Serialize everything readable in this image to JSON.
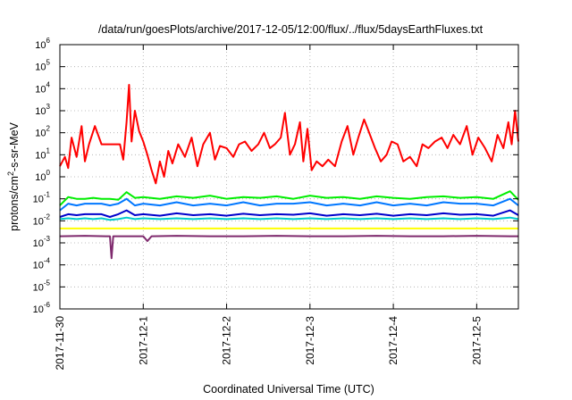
{
  "chart_data": {
    "type": "line",
    "title": "/data/run/goesPlots/archive/2017-12-05/12:00/flux/../flux/5daysEarthFluxes.txt",
    "xlabel": "Coordinated Universal Time (UTC)",
    "ylabel": {
      "base": "protons/cm",
      "sup": "2",
      "rest": "-s-sr-MeV"
    },
    "y_scale": "log",
    "ylim": [
      1e-06,
      1000000.0
    ],
    "xlim": [
      "2017-11-30 00:00",
      "2017-12-05 12:00"
    ],
    "x_ticks": [
      "2017-11-30",
      "2017-12-1",
      "2017-12-2",
      "2017-12-3",
      "2017-12-4",
      "2017-12-5"
    ],
    "y_ticks": [
      {
        "value": 1e-06,
        "base": "10",
        "exp": "-6"
      },
      {
        "value": 1e-05,
        "base": "10",
        "exp": "-5"
      },
      {
        "value": 0.0001,
        "base": "10",
        "exp": "-4"
      },
      {
        "value": 0.001,
        "base": "10",
        "exp": "-3"
      },
      {
        "value": 0.01,
        "base": "10",
        "exp": "-2"
      },
      {
        "value": 0.1,
        "base": "10",
        "exp": "-1"
      },
      {
        "value": 1,
        "base": "10",
        "exp": "0"
      },
      {
        "value": 10,
        "base": "10",
        "exp": "1"
      },
      {
        "value": 100,
        "base": "10",
        "exp": "2"
      },
      {
        "value": 1000,
        "base": "10",
        "exp": "3"
      },
      {
        "value": 10000,
        "base": "10",
        "exp": "4"
      },
      {
        "value": 100000,
        "base": "10",
        "exp": "5"
      },
      {
        "value": 1000000,
        "base": "10",
        "exp": "6"
      }
    ],
    "grid": true,
    "legend": "none",
    "series": [
      {
        "color": "#ff0000",
        "x_days": [
          0,
          0.06,
          0.1,
          0.14,
          0.2,
          0.26,
          0.3,
          0.35,
          0.42,
          0.5,
          0.56,
          0.62,
          0.68,
          0.72,
          0.76,
          0.8,
          0.83,
          0.86,
          0.9,
          0.95,
          1.0,
          1.05,
          1.1,
          1.15,
          1.2,
          1.25,
          1.3,
          1.35,
          1.42,
          1.5,
          1.58,
          1.65,
          1.72,
          1.8,
          1.86,
          1.92,
          2.0,
          2.08,
          2.15,
          2.22,
          2.3,
          2.38,
          2.45,
          2.52,
          2.58,
          2.65,
          2.7,
          2.76,
          2.82,
          2.88,
          2.92,
          2.97,
          3.02,
          3.08,
          3.15,
          3.22,
          3.3,
          3.38,
          3.45,
          3.52,
          3.58,
          3.65,
          3.72,
          3.78,
          3.85,
          3.92,
          3.98,
          4.05,
          4.12,
          4.2,
          4.28,
          4.35,
          4.42,
          4.5,
          4.58,
          4.65,
          4.72,
          4.8,
          4.88,
          4.95,
          5.02,
          5.1,
          5.18,
          5.25,
          5.32,
          5.38,
          5.42,
          5.46,
          5.5
        ],
        "values": [
          3,
          8,
          2.5,
          60,
          8,
          200,
          5,
          30,
          200,
          30,
          30,
          30,
          30,
          30,
          6,
          300,
          15000,
          40,
          1000,
          120,
          40,
          10,
          2,
          0.5,
          5,
          1,
          15,
          4,
          30,
          8,
          60,
          3,
          30,
          100,
          6,
          25,
          20,
          8,
          30,
          40,
          15,
          30,
          100,
          20,
          30,
          60,
          800,
          10,
          30,
          300,
          5,
          150,
          2,
          5,
          3,
          6,
          3,
          40,
          200,
          10,
          60,
          400,
          80,
          20,
          5,
          10,
          40,
          30,
          5,
          8,
          3,
          30,
          20,
          40,
          60,
          20,
          80,
          30,
          200,
          10,
          60,
          20,
          5,
          80,
          20,
          300,
          30,
          1000,
          40
        ]
      },
      {
        "color": "#00ee00",
        "x_days": [
          0,
          0.1,
          0.2,
          0.3,
          0.4,
          0.5,
          0.6,
          0.7,
          0.8,
          0.9,
          1.0,
          1.2,
          1.4,
          1.6,
          1.8,
          2.0,
          2.2,
          2.4,
          2.6,
          2.8,
          3.0,
          3.2,
          3.4,
          3.6,
          3.8,
          4.0,
          4.2,
          4.4,
          4.6,
          4.8,
          5.0,
          5.2,
          5.4,
          5.5
        ],
        "values": [
          0.05,
          0.12,
          0.1,
          0.1,
          0.11,
          0.1,
          0.1,
          0.09,
          0.2,
          0.11,
          0.12,
          0.1,
          0.13,
          0.11,
          0.14,
          0.1,
          0.12,
          0.11,
          0.13,
          0.1,
          0.14,
          0.11,
          0.12,
          0.1,
          0.13,
          0.11,
          0.1,
          0.12,
          0.13,
          0.11,
          0.12,
          0.1,
          0.22,
          0.09
        ]
      },
      {
        "color": "#0077ff",
        "x_days": [
          0,
          0.1,
          0.2,
          0.3,
          0.4,
          0.5,
          0.6,
          0.7,
          0.8,
          0.9,
          1.0,
          1.2,
          1.4,
          1.6,
          1.8,
          2.0,
          2.2,
          2.4,
          2.6,
          2.8,
          3.0,
          3.2,
          3.4,
          3.6,
          3.8,
          4.0,
          4.2,
          4.4,
          4.6,
          4.8,
          5.0,
          5.2,
          5.4,
          5.5
        ],
        "values": [
          0.03,
          0.06,
          0.05,
          0.06,
          0.06,
          0.06,
          0.05,
          0.06,
          0.1,
          0.05,
          0.06,
          0.05,
          0.07,
          0.05,
          0.06,
          0.05,
          0.07,
          0.05,
          0.06,
          0.06,
          0.07,
          0.05,
          0.06,
          0.05,
          0.07,
          0.05,
          0.06,
          0.05,
          0.07,
          0.06,
          0.06,
          0.05,
          0.1,
          0.05
        ]
      },
      {
        "color": "#0000cc",
        "x_days": [
          0,
          0.1,
          0.2,
          0.3,
          0.4,
          0.5,
          0.6,
          0.7,
          0.8,
          0.9,
          1.0,
          1.2,
          1.4,
          1.6,
          1.8,
          2.0,
          2.2,
          2.4,
          2.6,
          2.8,
          3.0,
          3.2,
          3.4,
          3.6,
          3.8,
          4.0,
          4.2,
          4.4,
          4.6,
          4.8,
          5.0,
          5.2,
          5.4,
          5.5
        ],
        "values": [
          0.015,
          0.02,
          0.018,
          0.02,
          0.02,
          0.02,
          0.015,
          0.02,
          0.03,
          0.018,
          0.02,
          0.017,
          0.022,
          0.018,
          0.02,
          0.017,
          0.021,
          0.018,
          0.02,
          0.019,
          0.022,
          0.017,
          0.02,
          0.018,
          0.021,
          0.017,
          0.02,
          0.018,
          0.022,
          0.019,
          0.02,
          0.017,
          0.03,
          0.018
        ]
      },
      {
        "color": "#00cccc",
        "x_days": [
          0,
          0.1,
          0.2,
          0.3,
          0.4,
          0.5,
          0.6,
          0.7,
          0.8,
          0.9,
          1.0,
          1.2,
          1.4,
          1.6,
          1.8,
          2.0,
          2.2,
          2.4,
          2.6,
          2.8,
          3.0,
          3.2,
          3.4,
          3.6,
          3.8,
          4.0,
          4.2,
          4.4,
          4.6,
          4.8,
          5.0,
          5.2,
          5.4,
          5.5
        ],
        "values": [
          0.012,
          0.013,
          0.012,
          0.013,
          0.012,
          0.013,
          0.011,
          0.012,
          0.014,
          0.012,
          0.013,
          0.012,
          0.013,
          0.012,
          0.013,
          0.012,
          0.013,
          0.012,
          0.013,
          0.012,
          0.013,
          0.012,
          0.013,
          0.012,
          0.013,
          0.012,
          0.013,
          0.012,
          0.013,
          0.012,
          0.013,
          0.012,
          0.014,
          0.012
        ]
      },
      {
        "color": "#ffff00",
        "x_days": [
          0,
          0.5,
          1.0,
          1.5,
          2.0,
          2.5,
          3.0,
          3.5,
          4.0,
          4.5,
          5.0,
          5.5
        ],
        "values": [
          0.0045,
          0.0045,
          0.0045,
          0.0045,
          0.0045,
          0.0045,
          0.0045,
          0.0045,
          0.0045,
          0.0045,
          0.0045,
          0.0045
        ]
      },
      {
        "color": "#7f2a6e",
        "x_days": [
          0,
          0.3,
          0.55,
          0.6,
          0.62,
          0.64,
          0.7,
          1.0,
          1.05,
          1.1,
          1.4,
          1.8,
          2.2,
          2.6,
          3.0,
          3.4,
          3.8,
          4.2,
          4.6,
          5.0,
          5.4,
          5.5
        ],
        "values": [
          0.002,
          0.0021,
          0.002,
          0.002,
          0.0002,
          0.002,
          0.002,
          0.002,
          0.0012,
          0.002,
          0.0021,
          0.002,
          0.002,
          0.0021,
          0.002,
          0.002,
          0.0021,
          0.002,
          0.002,
          0.0021,
          0.002,
          0.002
        ]
      }
    ]
  }
}
